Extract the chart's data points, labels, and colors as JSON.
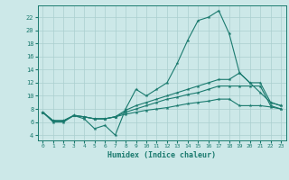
{
  "xlabel": "Humidex (Indice chaleur)",
  "bg_color": "#cce8e8",
  "line_color": "#1a7a6e",
  "grid_color": "#aacfcf",
  "x_ticks": [
    0,
    1,
    2,
    3,
    4,
    5,
    6,
    7,
    8,
    9,
    10,
    11,
    12,
    13,
    14,
    15,
    16,
    17,
    18,
    19,
    20,
    21,
    22,
    23
  ],
  "y_ticks": [
    4,
    6,
    8,
    10,
    12,
    14,
    16,
    18,
    20,
    22
  ],
  "ylim": [
    3.2,
    23.8
  ],
  "xlim": [
    -0.5,
    23.5
  ],
  "series1": [
    7.5,
    6.0,
    6.0,
    7.0,
    6.5,
    5.0,
    5.5,
    4.0,
    8.0,
    11.0,
    10.0,
    11.0,
    12.0,
    15.0,
    18.5,
    21.5,
    22.0,
    23.0,
    19.5,
    13.5,
    12.0,
    10.5,
    9.0,
    8.5
  ],
  "series2": [
    7.5,
    6.2,
    6.2,
    7.0,
    6.8,
    6.5,
    6.5,
    6.8,
    7.8,
    8.5,
    9.0,
    9.5,
    10.0,
    10.5,
    11.0,
    11.5,
    12.0,
    12.5,
    12.5,
    13.5,
    12.0,
    12.0,
    9.0,
    8.5
  ],
  "series3": [
    7.5,
    6.2,
    6.2,
    7.0,
    6.8,
    6.5,
    6.5,
    6.8,
    7.5,
    8.0,
    8.5,
    9.0,
    9.5,
    9.8,
    10.2,
    10.5,
    11.0,
    11.5,
    11.5,
    11.5,
    11.5,
    11.5,
    8.5,
    8.0
  ],
  "series4": [
    7.5,
    6.2,
    6.2,
    7.0,
    6.8,
    6.5,
    6.5,
    6.8,
    7.2,
    7.5,
    7.8,
    8.0,
    8.2,
    8.5,
    8.8,
    9.0,
    9.2,
    9.5,
    9.5,
    8.5,
    8.5,
    8.5,
    8.3,
    8.0
  ]
}
